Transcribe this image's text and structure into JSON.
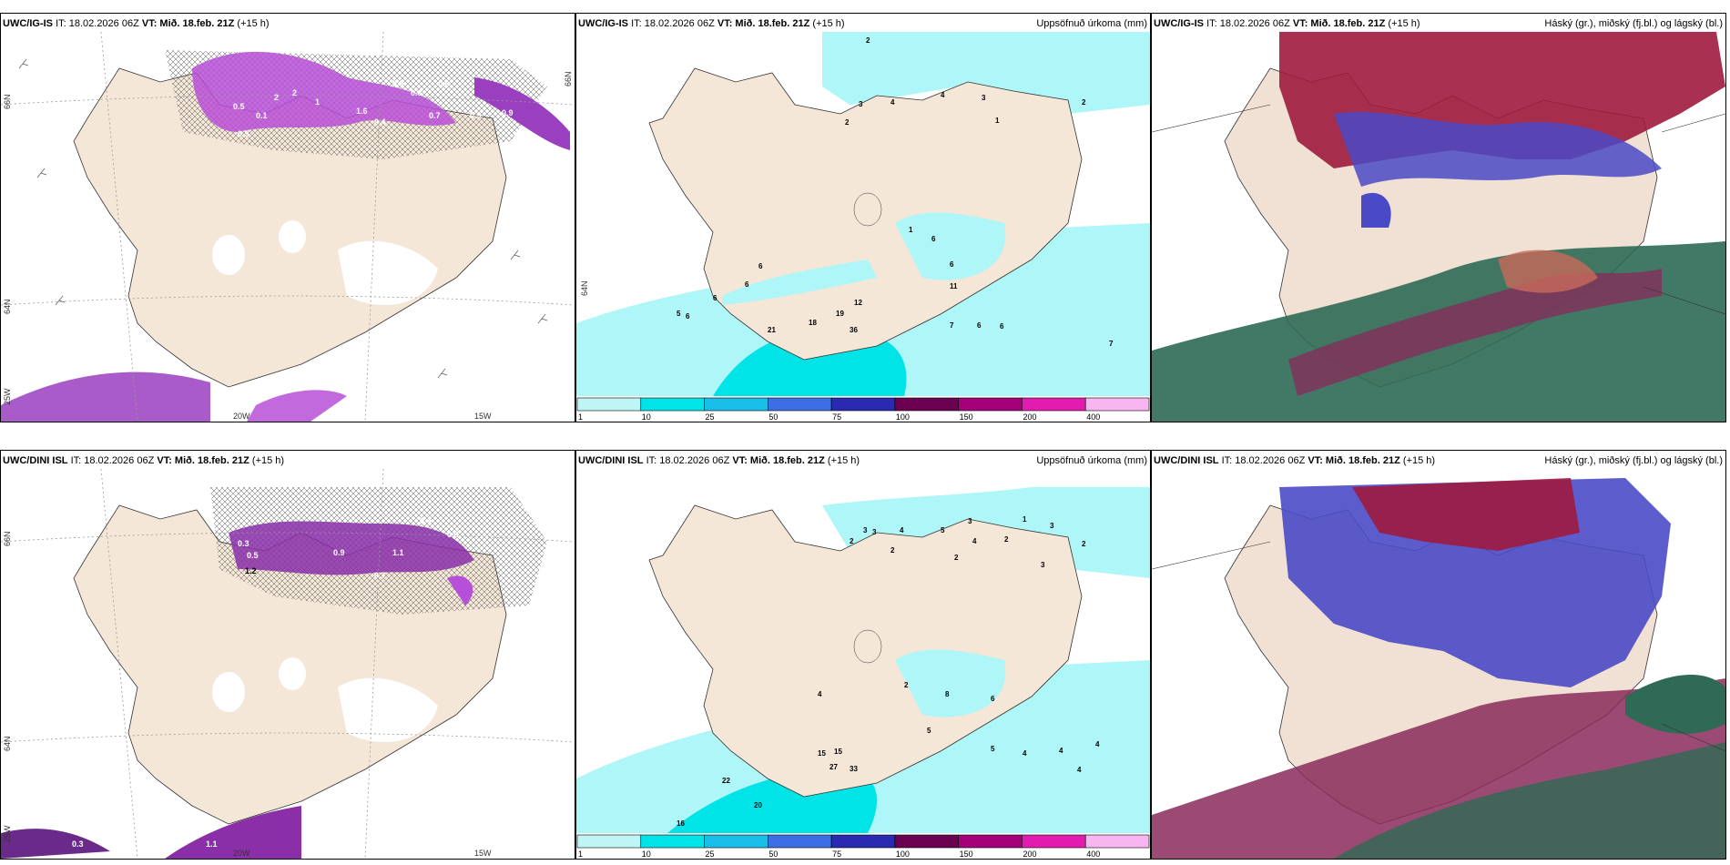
{
  "rows": [
    {
      "model": "UWC/IG-IS",
      "init": "IT: 18.02.2026 06Z",
      "vt_label": "VT:",
      "valid": "Mið. 18.feb. 21Z",
      "lead": "(+15 h)",
      "precip_title": "Uppsöfnuð úrkoma (mm)",
      "cloud_title": "Háský (gr.), miðský (fj.bl.) og lágský (bl.)",
      "lat_labels": [
        "66N",
        "64N"
      ],
      "lon_labels": [
        "20W",
        "15W",
        "25W"
      ],
      "wind_values": [
        "0.5",
        "0.1",
        "2",
        "2",
        "1",
        "0.9",
        "0.5",
        "0.3",
        "0.7",
        "0.4",
        "0.6",
        "1.6",
        "0.5",
        "0.9"
      ],
      "precip_values": [
        "2",
        "3",
        "4",
        "4",
        "3",
        "2",
        "1",
        "2",
        "1",
        "6",
        "6",
        "6",
        "6",
        "12",
        "19",
        "36",
        "18",
        "21",
        "6",
        "5",
        "11",
        "6",
        "7",
        "6",
        "6",
        "7"
      ]
    },
    {
      "model": "UWC/DINI ISL",
      "init": "IT: 18.02.2026 06Z",
      "vt_label": "VT:",
      "valid": "Mið. 18.feb. 21Z",
      "lead": "(+15 h)",
      "precip_title": "Uppsöfnuð úrkoma (mm)",
      "cloud_title": "Háský (gr.), miðský (fj.bl.) og lágský (bl.)",
      "lat_labels": [
        "66N",
        "64N"
      ],
      "lon_labels": [
        "20W",
        "15W",
        "25W"
      ],
      "wind_values": [
        "1.2",
        "0.3",
        "0.5",
        "0.7",
        "1.1",
        "0.9",
        "0.4",
        "0.6",
        "0.3",
        "1.1"
      ],
      "precip_values": [
        "3",
        "3",
        "2",
        "4",
        "5",
        "3",
        "4",
        "1",
        "2",
        "3",
        "2",
        "2",
        "2",
        "3",
        "2",
        "8",
        "6",
        "5",
        "4",
        "15",
        "15",
        "27",
        "33",
        "22",
        "20",
        "16",
        "5",
        "4",
        "4",
        "4",
        "4"
      ]
    }
  ],
  "precip_legend": {
    "ticks": [
      "1",
      "10",
      "25",
      "50",
      "75",
      "100",
      "150",
      "200",
      "400"
    ],
    "colors": [
      "#bff5f5",
      "#00e4e8",
      "#18bde8",
      "#3c6ee6",
      "#2a2ab0",
      "#6b0050",
      "#a3007a",
      "#e31cb0",
      "#f7b6ef"
    ]
  },
  "colors": {
    "land": "#f4e7d8",
    "sea_precip": "#aef6f7",
    "precip_mid": "#00e4e8",
    "precip_high": "#18bde8",
    "wind_purple": "#a33bd0",
    "wind_dark": "#6a2a8a",
    "cloud_red": "#9e1a3e",
    "cloud_blue": "#4a4ac6",
    "cloud_green": "#2e6a55"
  }
}
